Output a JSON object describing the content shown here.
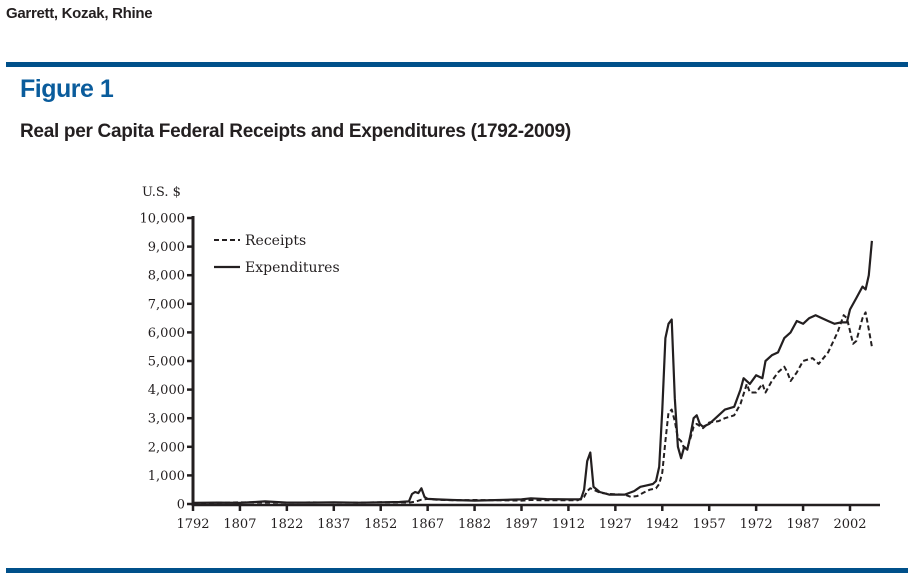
{
  "header": {
    "authors": "Garrett, Kozak, Rhine"
  },
  "figure": {
    "label": "Figure 1",
    "title": "Real per Capita Federal Receipts and Expenditures (1792-2009)"
  },
  "colors": {
    "rule": "#00508a",
    "figure_label": "#0a5c9c",
    "ink": "#231f20"
  },
  "chart_data": {
    "type": "line",
    "title": "Real per Capita Federal Receipts and Expenditures (1792-2009)",
    "xlabel": "",
    "ylabel": "U.S. $",
    "xlim": [
      1792,
      2009
    ],
    "ylim": [
      0,
      10000
    ],
    "grid": false,
    "legend_position": "top-left",
    "x_ticks": [
      1792,
      1807,
      1822,
      1837,
      1852,
      1867,
      1882,
      1897,
      1912,
      1927,
      1942,
      1957,
      1972,
      1987,
      2002
    ],
    "x_tick_labels": [
      "1792",
      "1807",
      "1822",
      "1837",
      "1852",
      "1867",
      "1882",
      "1897",
      "1912",
      "1927",
      "1942",
      "1957",
      "1972",
      "1987",
      "2002"
    ],
    "y_ticks": [
      0,
      1000,
      2000,
      3000,
      4000,
      5000,
      6000,
      7000,
      8000,
      9000,
      10000
    ],
    "y_tick_labels": [
      "0",
      "1,000",
      "2,000",
      "3,000",
      "4,000",
      "5,000",
      "6,000",
      "7,000",
      "8,000",
      "9,000",
      "10,000"
    ],
    "series": [
      {
        "name": "Receipts",
        "style": "dashed",
        "points": [
          [
            1792,
            30
          ],
          [
            1800,
            40
          ],
          [
            1807,
            60
          ],
          [
            1815,
            50
          ],
          [
            1822,
            45
          ],
          [
            1830,
            55
          ],
          [
            1837,
            50
          ],
          [
            1845,
            45
          ],
          [
            1852,
            60
          ],
          [
            1858,
            55
          ],
          [
            1861,
            50
          ],
          [
            1863,
            80
          ],
          [
            1865,
            150
          ],
          [
            1867,
            180
          ],
          [
            1870,
            150
          ],
          [
            1875,
            130
          ],
          [
            1882,
            140
          ],
          [
            1890,
            130
          ],
          [
            1897,
            120
          ],
          [
            1900,
            140
          ],
          [
            1905,
            130
          ],
          [
            1912,
            130
          ],
          [
            1915,
            130
          ],
          [
            1917,
            250
          ],
          [
            1918,
            450
          ],
          [
            1919,
            550
          ],
          [
            1920,
            500
          ],
          [
            1922,
            400
          ],
          [
            1925,
            350
          ],
          [
            1930,
            330
          ],
          [
            1932,
            250
          ],
          [
            1934,
            280
          ],
          [
            1936,
            400
          ],
          [
            1938,
            500
          ],
          [
            1940,
            550
          ],
          [
            1941,
            700
          ],
          [
            1942,
            1100
          ],
          [
            1943,
            2200
          ],
          [
            1944,
            3200
          ],
          [
            1945,
            3300
          ],
          [
            1946,
            2900
          ],
          [
            1947,
            2300
          ],
          [
            1948,
            2200
          ],
          [
            1949,
            1950
          ],
          [
            1950,
            1950
          ],
          [
            1951,
            2300
          ],
          [
            1952,
            2700
          ],
          [
            1953,
            2800
          ],
          [
            1955,
            2650
          ],
          [
            1957,
            2850
          ],
          [
            1960,
            2900
          ],
          [
            1962,
            3000
          ],
          [
            1965,
            3100
          ],
          [
            1967,
            3500
          ],
          [
            1969,
            4200
          ],
          [
            1970,
            3900
          ],
          [
            1972,
            3900
          ],
          [
            1974,
            4200
          ],
          [
            1975,
            3900
          ],
          [
            1977,
            4300
          ],
          [
            1979,
            4600
          ],
          [
            1981,
            4800
          ],
          [
            1982,
            4600
          ],
          [
            1983,
            4300
          ],
          [
            1985,
            4600
          ],
          [
            1987,
            5000
          ],
          [
            1990,
            5100
          ],
          [
            1992,
            4900
          ],
          [
            1995,
            5300
          ],
          [
            1998,
            6000
          ],
          [
            2000,
            6600
          ],
          [
            2001,
            6500
          ],
          [
            2003,
            5600
          ],
          [
            2004,
            5700
          ],
          [
            2006,
            6500
          ],
          [
            2007,
            6700
          ],
          [
            2008,
            6100
          ],
          [
            2009,
            5500
          ]
        ]
      },
      {
        "name": "Expenditures",
        "style": "solid",
        "points": [
          [
            1792,
            40
          ],
          [
            1800,
            50
          ],
          [
            1807,
            40
          ],
          [
            1812,
            70
          ],
          [
            1815,
            90
          ],
          [
            1822,
            50
          ],
          [
            1830,
            50
          ],
          [
            1837,
            60
          ],
          [
            1845,
            45
          ],
          [
            1852,
            60
          ],
          [
            1858,
            70
          ],
          [
            1861,
            90
          ],
          [
            1862,
            350
          ],
          [
            1863,
            420
          ],
          [
            1864,
            380
          ],
          [
            1865,
            550
          ],
          [
            1866,
            250
          ],
          [
            1867,
            180
          ],
          [
            1870,
            160
          ],
          [
            1875,
            140
          ],
          [
            1882,
            120
          ],
          [
            1890,
            140
          ],
          [
            1897,
            160
          ],
          [
            1900,
            200
          ],
          [
            1905,
            170
          ],
          [
            1912,
            160
          ],
          [
            1916,
            160
          ],
          [
            1917,
            500
          ],
          [
            1918,
            1500
          ],
          [
            1919,
            1800
          ],
          [
            1920,
            600
          ],
          [
            1922,
            420
          ],
          [
            1925,
            330
          ],
          [
            1930,
            330
          ],
          [
            1933,
            450
          ],
          [
            1935,
            600
          ],
          [
            1937,
            650
          ],
          [
            1939,
            700
          ],
          [
            1940,
            800
          ],
          [
            1941,
            1300
          ],
          [
            1942,
            3300
          ],
          [
            1943,
            5800
          ],
          [
            1944,
            6300
          ],
          [
            1945,
            6450
          ],
          [
            1946,
            3700
          ],
          [
            1947,
            2000
          ],
          [
            1948,
            1600
          ],
          [
            1949,
            2000
          ],
          [
            1950,
            1900
          ],
          [
            1951,
            2400
          ],
          [
            1952,
            3000
          ],
          [
            1953,
            3100
          ],
          [
            1954,
            2800
          ],
          [
            1955,
            2700
          ],
          [
            1957,
            2800
          ],
          [
            1959,
            3000
          ],
          [
            1962,
            3300
          ],
          [
            1965,
            3400
          ],
          [
            1967,
            4000
          ],
          [
            1968,
            4400
          ],
          [
            1970,
            4200
          ],
          [
            1972,
            4500
          ],
          [
            1974,
            4400
          ],
          [
            1975,
            5000
          ],
          [
            1977,
            5200
          ],
          [
            1979,
            5300
          ],
          [
            1981,
            5800
          ],
          [
            1983,
            6000
          ],
          [
            1985,
            6400
          ],
          [
            1987,
            6300
          ],
          [
            1989,
            6500
          ],
          [
            1991,
            6600
          ],
          [
            1993,
            6500
          ],
          [
            1995,
            6400
          ],
          [
            1997,
            6300
          ],
          [
            1999,
            6350
          ],
          [
            2001,
            6350
          ],
          [
            2002,
            6800
          ],
          [
            2004,
            7200
          ],
          [
            2006,
            7600
          ],
          [
            2007,
            7500
          ],
          [
            2008,
            8000
          ],
          [
            2009,
            9200
          ]
        ]
      }
    ]
  }
}
